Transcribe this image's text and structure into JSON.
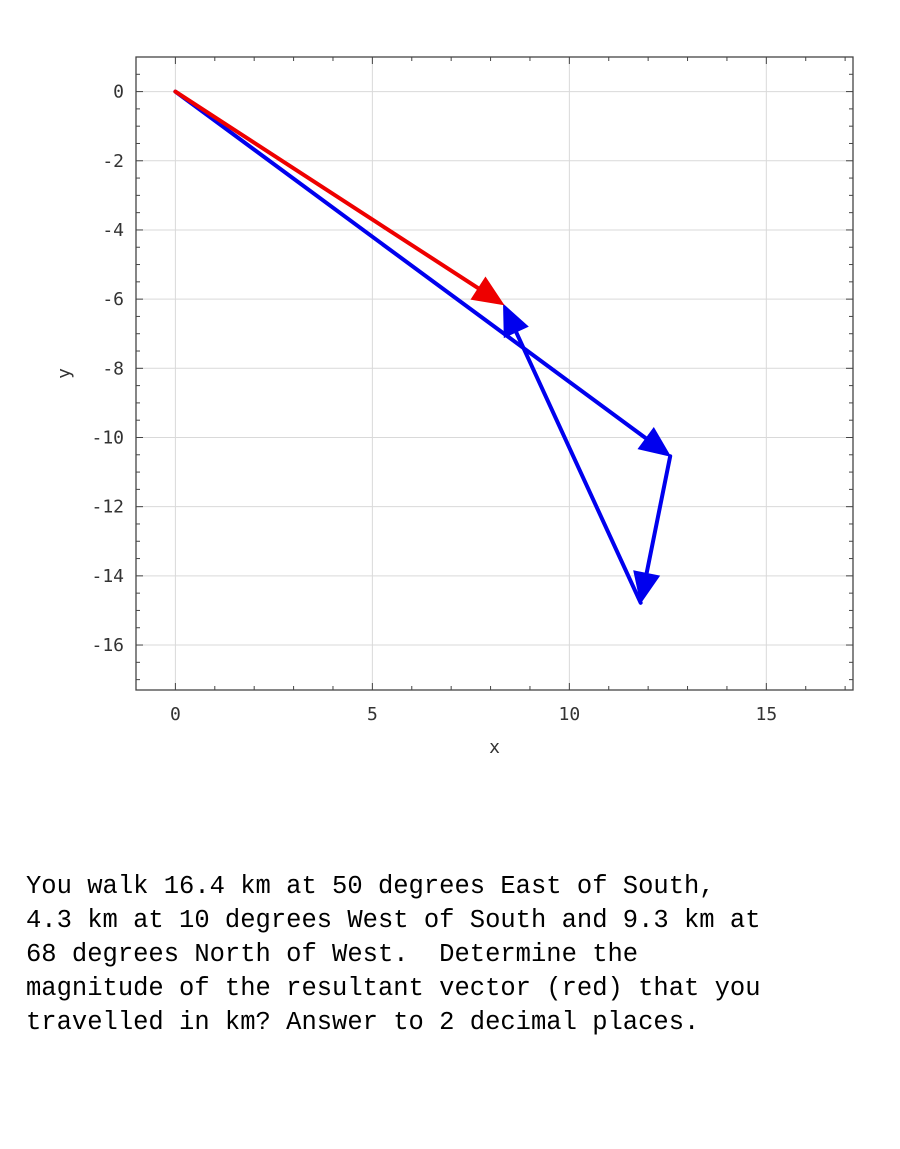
{
  "chart_data": {
    "type": "vector",
    "xlabel": "x",
    "ylabel": "y",
    "xlim": [
      -1,
      17.2
    ],
    "ylim": [
      -17.3,
      1
    ],
    "xticks": [
      0,
      5,
      10,
      15
    ],
    "yticks": [
      0,
      -2,
      -4,
      -6,
      -8,
      -10,
      -12,
      -14,
      -16
    ],
    "grid": true,
    "colors": {
      "component": "#0000ee",
      "resultant": "#ee0000"
    },
    "vectors": [
      {
        "from": [
          0,
          0
        ],
        "to": [
          12.56,
          -10.54
        ],
        "role": "component"
      },
      {
        "from": [
          12.56,
          -10.54
        ],
        "to": [
          11.81,
          -14.78
        ],
        "role": "component"
      },
      {
        "from": [
          11.81,
          -14.78
        ],
        "to": [
          8.33,
          -6.16
        ],
        "role": "component"
      },
      {
        "from": [
          0,
          0
        ],
        "to": [
          8.33,
          -6.16
        ],
        "role": "resultant"
      }
    ]
  },
  "question": {
    "lines": [
      "You walk 16.4 km at 50 degrees East of South,",
      "4.3 km at 10 degrees West of South and 9.3 km at",
      "68 degrees North of West.  Determine the",
      "magnitude of the resultant vector (red) that you",
      "travelled in km? Answer to 2 decimal places."
    ]
  }
}
